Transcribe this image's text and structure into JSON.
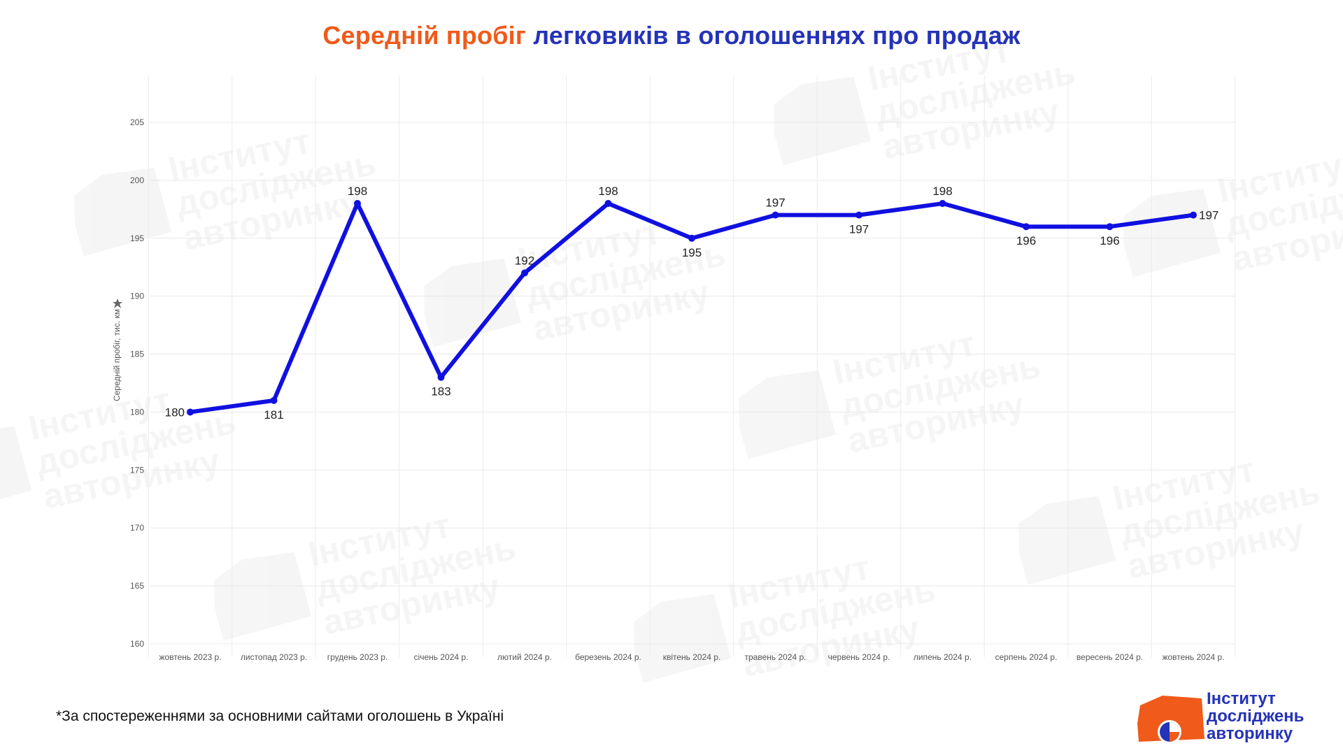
{
  "title": {
    "part1": "Середній пробіг",
    "part2": "легковиків в оголошеннях про продаж"
  },
  "footnote": "*За спостереженнями за основними сайтами оголошень в Україні",
  "logo": {
    "line1": "Інститут",
    "line2": "досліджень",
    "line3": "авторинку"
  },
  "watermark_text": [
    "Інститут",
    "досліджень",
    "авторинку"
  ],
  "colors": {
    "title_accent": "#f05a1a",
    "title_main": "#2533b8",
    "line": "#1010e0",
    "logo_orange": "#f05a1a",
    "logo_blue": "#2533b8"
  },
  "chart_data": {
    "type": "line",
    "title": "Середній пробіг легковиків в оголошеннях про продаж",
    "xlabel": "",
    "ylabel": "Середній пробіг, тис. км",
    "ylim": [
      160,
      205
    ],
    "yticks": [
      160,
      165,
      170,
      175,
      180,
      185,
      190,
      195,
      200,
      205
    ],
    "grid": true,
    "categories": [
      "жовтень 2023 р.",
      "листопад 2023 р.",
      "грудень 2023 р.",
      "січень 2024 р.",
      "лютий 2024 р.",
      "березень 2024 р.",
      "квітень 2024 р.",
      "травень 2024 р.",
      "червень 2024 р.",
      "липень 2024 р.",
      "серпень 2024 р.",
      "вересень 2024 р.",
      "жовтень 2024 р."
    ],
    "values": [
      180,
      181,
      198,
      183,
      192,
      198,
      195,
      197,
      197,
      198,
      196,
      196,
      197
    ],
    "label_positions": [
      "left",
      "below",
      "above",
      "below",
      "above",
      "above",
      "below",
      "above",
      "below",
      "above",
      "below",
      "below",
      "right"
    ]
  }
}
